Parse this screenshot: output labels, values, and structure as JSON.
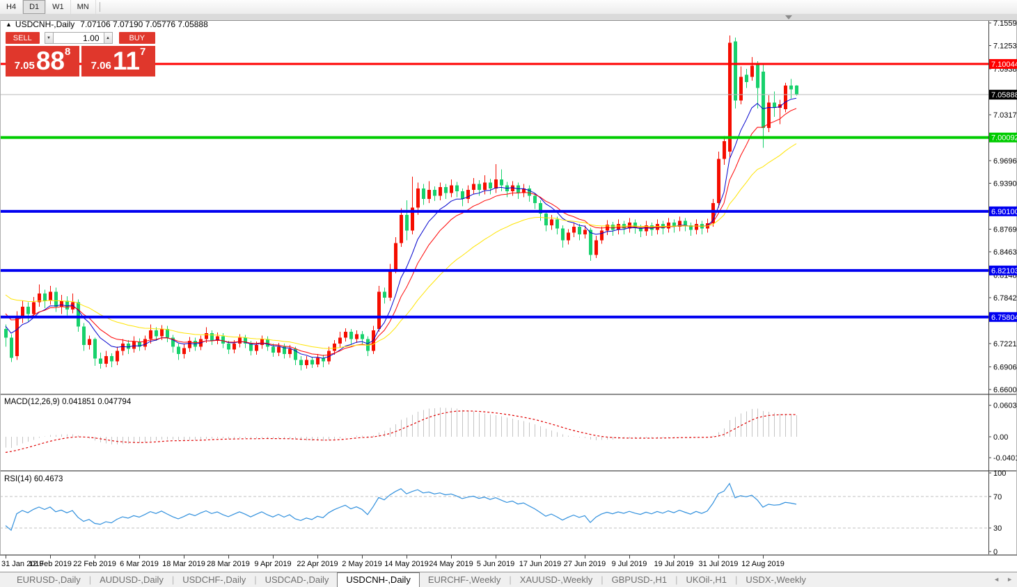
{
  "toolbar": {
    "timeframes": [
      {
        "label": "H4",
        "active": false
      },
      {
        "label": "D1",
        "active": true
      },
      {
        "label": "W1",
        "active": false
      },
      {
        "label": "MN",
        "active": false
      }
    ]
  },
  "chart": {
    "title": {
      "collapse_arrow": "▲",
      "symbol": "USDCNH-,Daily",
      "ohlc_text": "7.07106 7.07190 7.05776 7.05888"
    },
    "trade_widget": {
      "sell_label": "SELL",
      "buy_label": "BUY",
      "volume": "1.00",
      "spinner_down_glyph": "▼",
      "spinner_up_glyph": "▲",
      "sell_price": {
        "prefix": "7.05",
        "big": "88",
        "sup": "8"
      },
      "buy_price": {
        "prefix": "7.06",
        "big": "11",
        "sup": "7"
      }
    }
  },
  "chart_data": {
    "type": "candlestick",
    "symbol": "USDCNH",
    "timeframe": "Daily",
    "last_ohlc": {
      "open": 7.07106,
      "high": 7.0719,
      "low": 7.05776,
      "close": 7.05888
    },
    "y_axis_ticks": [
      "7.15590",
      "7.12530",
      "7.09380",
      "7.03170",
      "6.96960",
      "6.93900",
      "6.87690",
      "6.84630",
      "6.81480",
      "6.78420",
      "6.72210",
      "6.69060",
      "6.66000"
    ],
    "x_labels": [
      "31 Jan 2019",
      "12 Feb 2019",
      "22 Feb 2019",
      "6 Mar 2019",
      "18 Mar 2019",
      "28 Mar 2019",
      "9 Apr 2019",
      "22 Apr 2019",
      "2 May 2019",
      "14 May 2019",
      "24 May 2019",
      "5 Jun 2019",
      "17 Jun 2019",
      "27 Jun 2019",
      "9 Jul 2019",
      "19 Jul 2019",
      "31 Jul 2019",
      "12 Aug 2019"
    ],
    "x_label_indices": [
      0,
      8,
      16,
      24,
      32,
      40,
      48,
      56,
      64,
      72,
      80,
      88,
      96,
      104,
      112,
      120,
      128,
      136
    ],
    "hlines": [
      {
        "price": 7.10044,
        "label": "7.10044",
        "color_key": "hline_red",
        "thickness": 3
      },
      {
        "price": 7.00092,
        "label": "7.00092",
        "color_key": "hline_green",
        "thickness": 4
      },
      {
        "price": 6.901,
        "label": "6.90100",
        "color_key": "hline_blue",
        "thickness": 4
      },
      {
        "price": 6.82103,
        "label": "6.82103",
        "color_key": "hline_blue",
        "thickness": 4
      },
      {
        "price": 6.75804,
        "label": "6.75804",
        "color_key": "hline_blue",
        "thickness": 4
      }
    ],
    "current_price": {
      "value": 7.05888,
      "label": "7.05888"
    },
    "moving_averages": [
      {
        "period": 8,
        "seed": 6.75,
        "color_key": "ma_fast"
      },
      {
        "period": 13,
        "seed": 6.768,
        "color_key": "ma_mid"
      },
      {
        "period": 30,
        "seed": 6.792,
        "color_key": "ma_slow"
      }
    ],
    "indicators": {
      "macd": {
        "name": "MACD(12,26,9)",
        "main_value": "0.041851",
        "signal_value": "0.047794",
        "fast": 12,
        "slow": 26,
        "signal": 9,
        "axis_labels": [
          "0.060343",
          "0.00",
          "-0.040136"
        ]
      },
      "rsi": {
        "name": "RSI(14)",
        "value": "60.4673",
        "period": 14,
        "axis_labels": [
          "100",
          "70",
          "30",
          "0"
        ],
        "levels": [
          70,
          30
        ]
      }
    },
    "candles": [
      [
        6.742,
        6.748,
        6.718,
        6.73
      ],
      [
        6.73,
        6.735,
        6.697,
        6.703
      ],
      [
        6.705,
        6.766,
        6.7,
        6.757
      ],
      [
        6.757,
        6.78,
        6.75,
        6.772
      ],
      [
        6.772,
        6.778,
        6.752,
        6.762
      ],
      [
        6.762,
        6.785,
        6.758,
        6.778
      ],
      [
        6.778,
        6.802,
        6.772,
        6.79
      ],
      [
        6.79,
        6.795,
        6.77,
        6.78
      ],
      [
        6.78,
        6.8,
        6.775,
        6.792
      ],
      [
        6.792,
        6.798,
        6.765,
        6.772
      ],
      [
        6.772,
        6.788,
        6.762,
        6.78
      ],
      [
        6.78,
        6.786,
        6.76,
        6.768
      ],
      [
        6.768,
        6.79,
        6.763,
        6.778
      ],
      [
        6.778,
        6.782,
        6.738,
        6.745
      ],
      [
        6.745,
        6.75,
        6.712,
        6.72
      ],
      [
        6.72,
        6.733,
        6.714,
        6.728
      ],
      [
        6.728,
        6.73,
        6.692,
        6.702
      ],
      [
        6.702,
        6.71,
        6.688,
        6.695
      ],
      [
        6.695,
        6.712,
        6.69,
        6.705
      ],
      [
        6.705,
        6.709,
        6.69,
        6.698
      ],
      [
        6.698,
        6.718,
        6.693,
        6.712
      ],
      [
        6.712,
        6.728,
        6.706,
        6.722
      ],
      [
        6.722,
        6.727,
        6.708,
        6.715
      ],
      [
        6.715,
        6.732,
        6.71,
        6.725
      ],
      [
        6.725,
        6.729,
        6.712,
        6.718
      ],
      [
        6.718,
        6.733,
        6.713,
        6.728
      ],
      [
        6.728,
        6.748,
        6.722,
        6.74
      ],
      [
        6.74,
        6.744,
        6.726,
        6.732
      ],
      [
        6.732,
        6.747,
        6.727,
        6.742
      ],
      [
        6.742,
        6.746,
        6.724,
        6.73
      ],
      [
        6.73,
        6.734,
        6.71,
        6.718
      ],
      [
        6.718,
        6.722,
        6.7,
        6.708
      ],
      [
        6.708,
        6.721,
        6.702,
        6.716
      ],
      [
        6.716,
        6.731,
        6.711,
        6.726
      ],
      [
        6.726,
        6.73,
        6.712,
        6.718
      ],
      [
        6.718,
        6.733,
        6.713,
        6.728
      ],
      [
        6.728,
        6.744,
        6.723,
        6.736
      ],
      [
        6.736,
        6.74,
        6.72,
        6.726
      ],
      [
        6.726,
        6.737,
        6.721,
        6.732
      ],
      [
        6.732,
        6.736,
        6.716,
        6.722
      ],
      [
        6.722,
        6.726,
        6.708,
        6.714
      ],
      [
        6.714,
        6.727,
        6.709,
        6.722
      ],
      [
        6.722,
        6.735,
        6.717,
        6.73
      ],
      [
        6.73,
        6.734,
        6.716,
        6.722
      ],
      [
        6.722,
        6.726,
        6.706,
        6.712
      ],
      [
        6.712,
        6.725,
        6.707,
        6.72
      ],
      [
        6.72,
        6.733,
        6.715,
        6.728
      ],
      [
        6.728,
        6.732,
        6.712,
        6.718
      ],
      [
        6.718,
        6.722,
        6.704,
        6.71
      ],
      [
        6.71,
        6.723,
        6.705,
        6.718
      ],
      [
        6.718,
        6.722,
        6.702,
        6.708
      ],
      [
        6.708,
        6.72,
        6.703,
        6.715
      ],
      [
        6.715,
        6.718,
        6.693,
        6.7
      ],
      [
        6.7,
        6.705,
        6.686,
        6.693
      ],
      [
        6.693,
        6.705,
        6.688,
        6.7
      ],
      [
        6.7,
        6.704,
        6.689,
        6.694
      ],
      [
        6.694,
        6.708,
        6.69,
        6.703
      ],
      [
        6.703,
        6.707,
        6.69,
        6.698
      ],
      [
        6.698,
        6.718,
        6.694,
        6.712
      ],
      [
        6.712,
        6.727,
        6.707,
        6.722
      ],
      [
        6.722,
        6.738,
        6.717,
        6.73
      ],
      [
        6.73,
        6.743,
        6.725,
        6.738
      ],
      [
        6.738,
        6.742,
        6.72,
        6.728
      ],
      [
        6.728,
        6.74,
        6.723,
        6.735
      ],
      [
        6.735,
        6.739,
        6.721,
        6.728
      ],
      [
        6.728,
        6.732,
        6.705,
        6.712
      ],
      [
        6.712,
        6.746,
        6.708,
        6.74
      ],
      [
        6.742,
        6.8,
        6.738,
        6.792
      ],
      [
        6.792,
        6.798,
        6.776,
        6.784
      ],
      [
        6.784,
        6.83,
        6.78,
        6.822
      ],
      [
        6.822,
        6.866,
        6.817,
        6.858
      ],
      [
        6.858,
        6.905,
        6.853,
        6.896
      ],
      [
        6.896,
        6.916,
        6.862,
        6.875
      ],
      [
        6.875,
        6.948,
        6.87,
        6.906
      ],
      [
        6.906,
        6.94,
        6.896,
        6.932
      ],
      [
        6.932,
        6.938,
        6.91,
        6.918
      ],
      [
        6.918,
        6.942,
        6.912,
        6.93
      ],
      [
        6.93,
        6.935,
        6.915,
        6.922
      ],
      [
        6.922,
        6.94,
        6.916,
        6.934
      ],
      [
        6.934,
        6.938,
        6.918,
        6.926
      ],
      [
        6.926,
        6.944,
        6.92,
        6.936
      ],
      [
        6.936,
        6.941,
        6.92,
        6.928
      ],
      [
        6.928,
        6.932,
        6.908,
        6.918
      ],
      [
        6.918,
        6.936,
        6.912,
        6.93
      ],
      [
        6.93,
        6.946,
        6.924,
        6.938
      ],
      [
        6.938,
        6.943,
        6.922,
        6.93
      ],
      [
        6.93,
        6.95,
        6.924,
        6.94
      ],
      [
        6.94,
        6.945,
        6.924,
        6.932
      ],
      [
        6.932,
        6.965,
        6.926,
        6.944
      ],
      [
        6.944,
        6.958,
        6.928,
        6.936
      ],
      [
        6.936,
        6.941,
        6.92,
        6.928
      ],
      [
        6.928,
        6.942,
        6.922,
        6.936
      ],
      [
        6.936,
        6.94,
        6.918,
        6.926
      ],
      [
        6.926,
        6.938,
        6.92,
        6.932
      ],
      [
        6.932,
        6.936,
        6.914,
        6.922
      ],
      [
        6.922,
        6.926,
        6.904,
        6.912
      ],
      [
        6.912,
        6.916,
        6.888,
        6.898
      ],
      [
        6.898,
        6.903,
        6.874,
        6.882
      ],
      [
        6.882,
        6.896,
        6.876,
        6.89
      ],
      [
        6.89,
        6.894,
        6.87,
        6.878
      ],
      [
        6.878,
        6.882,
        6.852,
        6.862
      ],
      [
        6.862,
        6.877,
        6.856,
        6.872
      ],
      [
        6.872,
        6.886,
        6.866,
        6.88
      ],
      [
        6.88,
        6.884,
        6.862,
        6.87
      ],
      [
        6.87,
        6.882,
        6.864,
        6.876
      ],
      [
        6.876,
        6.879,
        6.834,
        6.842
      ],
      [
        6.842,
        6.868,
        6.838,
        6.862
      ],
      [
        6.862,
        6.88,
        6.857,
        6.875
      ],
      [
        6.875,
        6.889,
        6.869,
        6.883
      ],
      [
        6.883,
        6.887,
        6.868,
        6.876
      ],
      [
        6.876,
        6.89,
        6.87,
        6.884
      ],
      [
        6.884,
        6.888,
        6.87,
        6.878
      ],
      [
        6.878,
        6.892,
        6.872,
        6.886
      ],
      [
        6.886,
        6.89,
        6.871,
        6.879
      ],
      [
        6.879,
        6.883,
        6.866,
        6.874
      ],
      [
        6.874,
        6.888,
        6.868,
        6.882
      ],
      [
        6.882,
        6.886,
        6.868,
        6.876
      ],
      [
        6.876,
        6.89,
        6.87,
        6.884
      ],
      [
        6.884,
        6.888,
        6.87,
        6.878
      ],
      [
        6.878,
        6.892,
        6.872,
        6.886
      ],
      [
        6.886,
        6.89,
        6.872,
        6.88
      ],
      [
        6.88,
        6.894,
        6.874,
        6.888
      ],
      [
        6.888,
        6.892,
        6.874,
        6.882
      ],
      [
        6.882,
        6.886,
        6.868,
        6.876
      ],
      [
        6.876,
        6.89,
        6.87,
        6.884
      ],
      [
        6.884,
        6.888,
        6.87,
        6.878
      ],
      [
        6.878,
        6.891,
        6.872,
        6.885
      ],
      [
        6.885,
        6.918,
        6.88,
        6.912
      ],
      [
        6.912,
        6.982,
        6.906,
        6.972
      ],
      [
        6.972,
        7.003,
        6.964,
        6.996
      ],
      [
        6.982,
        7.139,
        6.974,
        7.129
      ],
      [
        7.131,
        7.136,
        7.04,
        7.051
      ],
      [
        7.051,
        7.097,
        7.046,
        7.083
      ],
      [
        7.086,
        7.094,
        7.068,
        7.076
      ],
      [
        7.083,
        7.11,
        7.078,
        7.098
      ],
      [
        7.1,
        7.104,
        7.04,
        7.068
      ],
      [
        7.09,
        7.102,
        6.987,
        7.014
      ],
      [
        7.014,
        7.058,
        7.008,
        7.048
      ],
      [
        7.048,
        7.063,
        7.029,
        7.041
      ],
      [
        7.041,
        7.052,
        7.019,
        7.046
      ],
      [
        7.039,
        7.075,
        7.035,
        7.071
      ],
      [
        7.071,
        7.08,
        7.054,
        7.066
      ],
      [
        7.07106,
        7.0719,
        7.05776,
        7.05888
      ]
    ]
  },
  "tab_bar": {
    "tabs": [
      {
        "label": "EURUSD-,Daily",
        "active": false
      },
      {
        "label": "AUDUSD-,Daily",
        "active": false
      },
      {
        "label": "USDCHF-,Daily",
        "active": false
      },
      {
        "label": "USDCAD-,Daily",
        "active": false
      },
      {
        "label": "USDCNH-,Daily",
        "active": true
      },
      {
        "label": "EURCHF-,Weekly",
        "active": false
      },
      {
        "label": "XAUUSD-,Weekly",
        "active": false
      },
      {
        "label": "GBPUSD-,H1",
        "active": false
      },
      {
        "label": "UKOil-,H1",
        "active": false
      },
      {
        "label": "USDX-,Weekly",
        "active": false
      }
    ],
    "scroll_left_glyph": "◄",
    "scroll_right_glyph": "►"
  },
  "colors": {
    "candle_up": "#F50D00",
    "candle_down": "#17D16C",
    "ma_fast": "#0000CD",
    "ma_mid": "#FF0000",
    "ma_slow": "#FFE400",
    "hline_red": "#FF0000",
    "hline_green": "#00CC00",
    "hline_blue": "#0000F0",
    "current_price_line": "#B9B9B9",
    "current_badge_bg": "#000000",
    "macd_hist": "#C4C4C4",
    "macd_signal": "#E00000",
    "rsi_line": "#2F8FDD",
    "trade_red": "#E0372C"
  }
}
